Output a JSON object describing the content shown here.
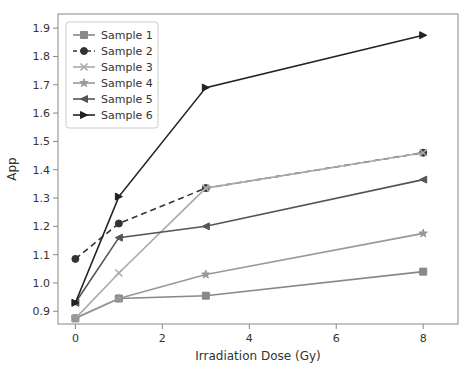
{
  "chart_data": {
    "type": "line",
    "xlabel": "Irradiation Dose (Gy)",
    "ylabel": "App",
    "x": [
      0,
      1,
      3,
      8
    ],
    "series": [
      {
        "name": "Sample 1",
        "color": "#888888",
        "marker": "square",
        "line_style": "solid",
        "values": [
          0.875,
          0.945,
          0.955,
          1.04
        ]
      },
      {
        "name": "Sample 2",
        "color": "#333333",
        "marker": "circle",
        "line_style": "dashed",
        "values": [
          1.085,
          1.21,
          1.335,
          1.46
        ]
      },
      {
        "name": "Sample 3",
        "color": "#aaaaaa",
        "marker": "x",
        "line_style": "solid",
        "values": [
          0.875,
          1.035,
          1.335,
          1.46
        ]
      },
      {
        "name": "Sample 4",
        "color": "#999999",
        "marker": "star",
        "line_style": "solid",
        "values": [
          0.875,
          0.945,
          1.03,
          1.175
        ]
      },
      {
        "name": "Sample 5",
        "color": "#555555",
        "marker": "triangle-left",
        "line_style": "solid",
        "values": [
          0.93,
          1.16,
          1.2,
          1.365
        ]
      },
      {
        "name": "Sample 6",
        "color": "#222222",
        "marker": "triangle-right",
        "line_style": "solid",
        "values": [
          0.93,
          1.305,
          1.69,
          1.875
        ]
      }
    ],
    "xlim": [
      -0.4,
      8.8
    ],
    "ylim": [
      0.855,
      1.95
    ],
    "xticks": [
      0,
      2,
      4,
      6,
      8
    ],
    "yticks": [
      0.9,
      {
        "value": 1.0,
        "label": "1.0"
      },
      1.1,
      1.2,
      1.3,
      1.4,
      1.5,
      1.6,
      1.7,
      1.8,
      1.9
    ],
    "grid": false,
    "legend": "upper left"
  }
}
